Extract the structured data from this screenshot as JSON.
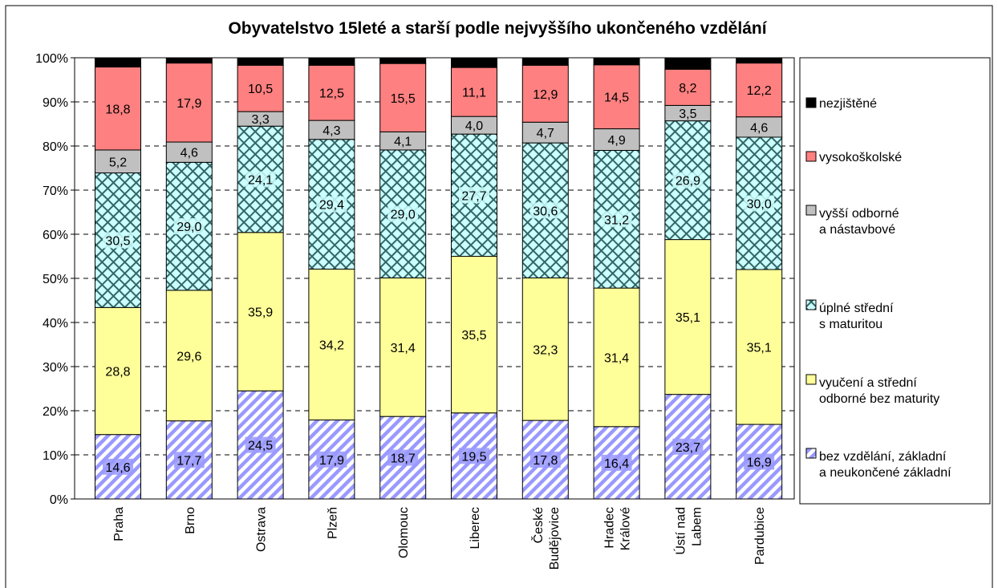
{
  "chart_data": {
    "type": "stacked_bar_100",
    "title": "Obyvatelstvo 15leté a starší podle nejvyššího ukončeného vzdělání",
    "categories": [
      "Praha",
      "Brno",
      "Ostrava",
      "Plzeň",
      "Olomouc",
      "Liberec",
      "České\nBudějovice",
      "Hradec\nKrálové",
      "Ústí nad\nLabem",
      "Pardubice"
    ],
    "ylim": [
      0,
      100
    ],
    "yticks": [
      {
        "value": 0,
        "label": "0%"
      },
      {
        "value": 10,
        "label": "10%"
      },
      {
        "value": 20,
        "label": "20%"
      },
      {
        "value": 30,
        "label": "30%"
      },
      {
        "value": 40,
        "label": "40%"
      },
      {
        "value": 50,
        "label": "50%"
      },
      {
        "value": 60,
        "label": "60%"
      },
      {
        "value": 70,
        "label": "70%"
      },
      {
        "value": 80,
        "label": "80%"
      },
      {
        "value": 90,
        "label": "90%"
      },
      {
        "value": 100,
        "label": "100%"
      }
    ],
    "grid": true,
    "legend": "right",
    "series": [
      {
        "name": "bez vzdělání, základní\na neukončené základní",
        "color": "#9999ff",
        "pattern": "hatch",
        "values": [
          14.6,
          17.7,
          24.5,
          17.9,
          18.7,
          19.5,
          17.8,
          16.4,
          23.7,
          16.9
        ],
        "value_labels": [
          "14,6",
          "17,7",
          "24,5",
          "17,9",
          "18,7",
          "19,5",
          "17,8",
          "16,4",
          "23,7",
          "16,9"
        ]
      },
      {
        "name": "vyučení a střední\nodborné bez maturity",
        "color": "#ffff99",
        "values": [
          28.8,
          29.6,
          35.9,
          34.2,
          31.4,
          35.5,
          32.3,
          31.4,
          35.1,
          35.1
        ],
        "value_labels": [
          "28,8",
          "29,6",
          "35,9",
          "34,2",
          "31,4",
          "35,5",
          "32,3",
          "31,4",
          "35,1",
          "35,1"
        ]
      },
      {
        "name": "úplné střední\ns maturitou",
        "color": "#ccffff",
        "pattern": "cross",
        "values": [
          30.5,
          29.0,
          24.1,
          29.4,
          29.0,
          27.7,
          30.6,
          31.2,
          26.9,
          30.0
        ],
        "value_labels": [
          "30,5",
          "29,0",
          "24,1",
          "29,4",
          "29,0",
          "27,7",
          "30,6",
          "31,2",
          "26,9",
          "30,0"
        ]
      },
      {
        "name": "vyšší odborné\na nástavbové",
        "color": "#c0c0c0",
        "values": [
          5.2,
          4.6,
          3.3,
          4.3,
          4.1,
          4.0,
          4.7,
          4.9,
          3.5,
          4.6
        ],
        "value_labels": [
          "5,2",
          "4,6",
          "3,3",
          "4,3",
          "4,1",
          "4,0",
          "4,7",
          "4,9",
          "3,5",
          "4,6"
        ]
      },
      {
        "name": "vysokoškolské",
        "color": "#ff8080",
        "values": [
          18.8,
          17.9,
          10.5,
          12.5,
          15.5,
          11.1,
          12.9,
          14.5,
          8.2,
          12.2
        ],
        "value_labels": [
          "18,8",
          "17,9",
          "10,5",
          "12,5",
          "15,5",
          "11,1",
          "12,9",
          "14,5",
          "8,2",
          "12,2"
        ]
      },
      {
        "name": "nezjištěné",
        "color": "#000000",
        "values": [
          2.1,
          1.2,
          1.7,
          1.7,
          1.3,
          2.2,
          1.7,
          1.6,
          2.6,
          1.2
        ]
      }
    ]
  }
}
